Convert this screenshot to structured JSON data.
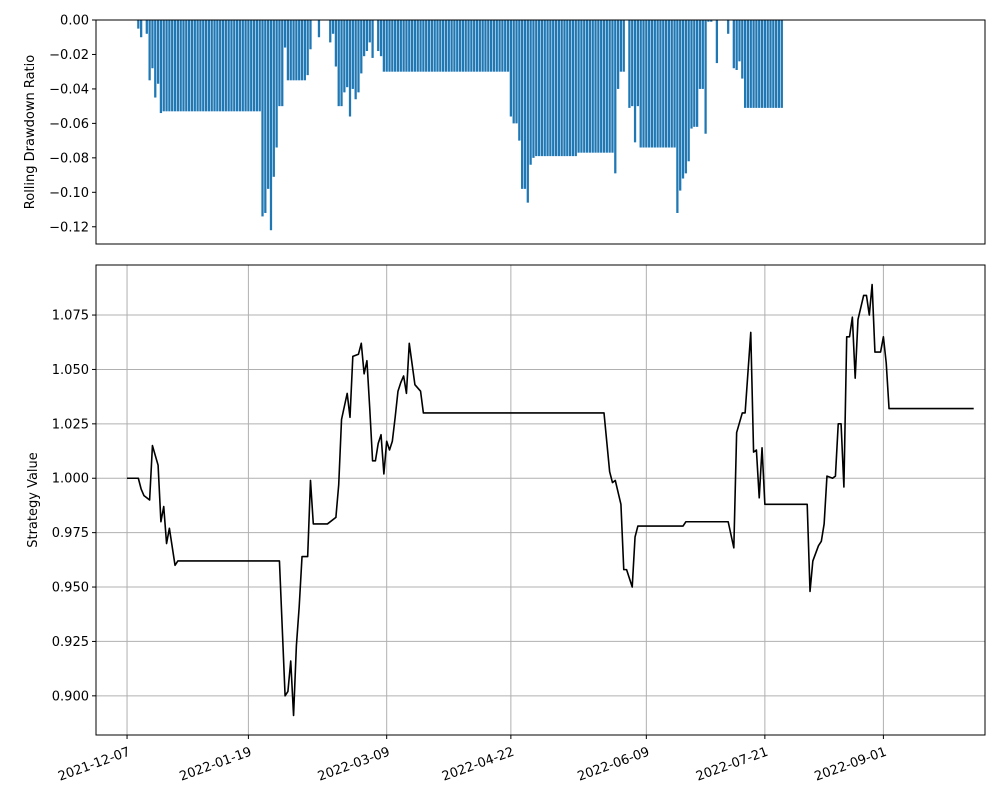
{
  "chart_data": [
    {
      "type": "bar",
      "ylabel": "Rolling Drawdown Ratio",
      "ylim": [
        -0.13,
        0.0
      ],
      "yticks": [
        0.0,
        -0.02,
        -0.04,
        -0.06,
        -0.08,
        -0.1,
        -0.12
      ],
      "ytick_labels": [
        "0.00",
        "−0.02",
        "−0.04",
        "−0.06",
        "−0.08",
        "−0.10",
        "−0.12"
      ],
      "x_start": "2021-12-07",
      "xlim": [
        "2021-11-26",
        "2022-10-07"
      ],
      "grid": false,
      "color": "#1f77b4",
      "values": [
        0,
        0,
        0,
        0,
        -0.005,
        -0.01,
        0,
        -0.008,
        -0.035,
        -0.028,
        -0.045,
        -0.037,
        -0.054,
        -0.053,
        -0.053,
        -0.053,
        -0.053,
        -0.053,
        -0.053,
        -0.053,
        -0.053,
        -0.053,
        -0.053,
        -0.053,
        -0.053,
        -0.053,
        -0.053,
        -0.053,
        -0.053,
        -0.053,
        -0.053,
        -0.053,
        -0.053,
        -0.053,
        -0.053,
        -0.053,
        -0.053,
        -0.053,
        -0.053,
        -0.053,
        -0.053,
        -0.053,
        -0.053,
        -0.053,
        -0.053,
        -0.053,
        -0.053,
        -0.053,
        -0.114,
        -0.112,
        -0.098,
        -0.122,
        -0.091,
        -0.074,
        -0.05,
        -0.05,
        -0.016,
        -0.035,
        -0.035,
        -0.035,
        -0.035,
        -0.035,
        -0.035,
        -0.035,
        -0.032,
        -0.017,
        0,
        0,
        -0.01,
        0,
        0,
        0,
        -0.013,
        -0.008,
        -0.027,
        -0.05,
        -0.05,
        -0.042,
        -0.039,
        -0.056,
        -0.04,
        -0.046,
        -0.042,
        -0.031,
        -0.021,
        -0.018,
        -0.013,
        -0.022,
        0,
        -0.018,
        -0.021,
        -0.03,
        -0.03,
        -0.03,
        -0.03,
        -0.03,
        -0.03,
        -0.03,
        -0.03,
        -0.03,
        -0.03,
        -0.03,
        -0.03,
        -0.03,
        -0.03,
        -0.03,
        -0.03,
        -0.03,
        -0.03,
        -0.03,
        -0.03,
        -0.03,
        -0.03,
        -0.03,
        -0.03,
        -0.03,
        -0.03,
        -0.03,
        -0.03,
        -0.03,
        -0.03,
        -0.03,
        -0.03,
        -0.03,
        -0.03,
        -0.03,
        -0.03,
        -0.03,
        -0.03,
        -0.03,
        -0.03,
        -0.03,
        -0.03,
        -0.03,
        -0.03,
        -0.03,
        -0.056,
        -0.06,
        -0.06,
        -0.07,
        -0.098,
        -0.098,
        -0.106,
        -0.084,
        -0.08,
        -0.079,
        -0.079,
        -0.079,
        -0.079,
        -0.079,
        -0.079,
        -0.079,
        -0.079,
        -0.079,
        -0.079,
        -0.079,
        -0.079,
        -0.079,
        -0.079,
        -0.079,
        -0.077,
        -0.077,
        -0.077,
        -0.077,
        -0.077,
        -0.077,
        -0.077,
        -0.077,
        -0.077,
        -0.077,
        -0.077,
        -0.077,
        -0.077,
        -0.089,
        -0.04,
        -0.03,
        -0.03,
        0,
        -0.051,
        -0.05,
        -0.071,
        -0.05,
        -0.074,
        -0.074,
        -0.074,
        -0.074,
        -0.074,
        -0.074,
        -0.074,
        -0.074,
        -0.074,
        -0.074,
        -0.074,
        -0.074,
        -0.074,
        -0.112,
        -0.099,
        -0.092,
        -0.089,
        -0.082,
        -0.063,
        -0.062,
        -0.062,
        -0.04,
        -0.04,
        -0.066,
        -0.001,
        -0.001,
        0,
        -0.025,
        0,
        0,
        0,
        -0.008,
        0,
        -0.028,
        -0.029,
        -0.024,
        -0.034,
        -0.051,
        -0.051,
        -0.051,
        -0.051,
        -0.051,
        -0.051,
        -0.051,
        -0.051,
        -0.051,
        -0.051,
        -0.051,
        -0.051,
        -0.051,
        -0.051,
        0
      ]
    },
    {
      "type": "line",
      "ylabel": "Strategy Value",
      "ylim": [
        0.882,
        1.098
      ],
      "yticks": [
        0.9,
        0.925,
        0.95,
        0.975,
        1.0,
        1.025,
        1.05,
        1.075
      ],
      "ytick_labels": [
        "0.900",
        "0.925",
        "0.950",
        "0.975",
        "1.000",
        "1.025",
        "1.050",
        "1.075"
      ],
      "xlim": [
        "2021-11-26",
        "2022-10-07"
      ],
      "xticks": [
        "2021-12-07",
        "2022-01-19",
        "2022-03-09",
        "2022-04-22",
        "2022-06-09",
        "2022-07-21",
        "2022-09-01"
      ],
      "grid": true,
      "color": "#000000",
      "x": [
        "2021-12-07",
        "2021-12-11",
        "2021-12-12",
        "2021-12-13",
        "2021-12-15",
        "2021-12-16",
        "2021-12-18",
        "2021-12-19",
        "2021-12-20",
        "2021-12-21",
        "2021-12-22",
        "2021-12-24",
        "2021-12-25",
        "2022-01-10",
        "2022-01-30",
        "2022-02-01",
        "2022-02-02",
        "2022-02-03",
        "2022-02-04",
        "2022-02-05",
        "2022-02-06",
        "2022-02-07",
        "2022-02-09",
        "2022-02-10",
        "2022-02-11",
        "2022-02-12",
        "2022-02-13",
        "2022-02-15",
        "2022-02-16",
        "2022-02-19",
        "2022-02-20",
        "2022-02-21",
        "2022-02-23",
        "2022-02-24",
        "2022-02-25",
        "2022-02-27",
        "2022-02-28",
        "2022-03-01",
        "2022-03-02",
        "2022-03-03",
        "2022-03-04",
        "2022-03-05",
        "2022-03-06",
        "2022-03-07",
        "2022-03-08",
        "2022-03-09",
        "2022-03-10",
        "2022-03-11",
        "2022-03-12",
        "2022-03-13",
        "2022-03-14",
        "2022-03-15",
        "2022-03-16",
        "2022-03-17",
        "2022-03-19",
        "2022-03-21",
        "2022-03-22",
        "2022-03-24",
        "2022-03-25",
        "2022-03-26",
        "2022-03-27",
        "2022-03-29",
        "2022-05-25",
        "2022-05-27",
        "2022-05-28",
        "2022-05-29",
        "2022-05-31",
        "2022-06-01",
        "2022-06-02",
        "2022-06-04",
        "2022-06-05",
        "2022-06-06",
        "2022-06-07",
        "2022-06-08",
        "2022-06-09",
        "2022-06-10",
        "2022-06-11",
        "2022-06-22",
        "2022-06-23",
        "2022-07-08",
        "2022-07-10",
        "2022-07-11",
        "2022-07-13",
        "2022-07-14",
        "2022-07-16",
        "2022-07-17",
        "2022-07-18",
        "2022-07-19",
        "2022-07-20",
        "2022-07-21",
        "2022-07-22",
        "2022-08-05",
        "2022-08-06",
        "2022-08-07",
        "2022-08-09",
        "2022-08-10",
        "2022-08-11",
        "2022-08-12",
        "2022-08-14",
        "2022-08-15",
        "2022-08-16",
        "2022-08-17",
        "2022-08-18",
        "2022-08-19",
        "2022-08-20",
        "2022-08-21",
        "2022-08-22",
        "2022-08-23",
        "2022-08-25",
        "2022-08-26",
        "2022-08-27",
        "2022-08-28",
        "2022-08-29",
        "2022-08-31",
        "2022-09-01",
        "2022-09-02",
        "2022-09-03",
        "2022-09-04",
        "2022-09-05",
        "2022-09-06",
        "2022-09-07",
        "2022-10-03"
      ],
      "values": [
        1.0,
        1.0,
        0.995,
        0.992,
        0.99,
        1.015,
        1.006,
        0.98,
        0.987,
        0.97,
        0.977,
        0.96,
        0.962,
        0.962,
        0.962,
        0.9,
        0.902,
        0.916,
        0.891,
        0.923,
        0.941,
        0.964,
        0.964,
        0.999,
        0.979,
        0.979,
        0.979,
        0.979,
        0.979,
        0.982,
        0.997,
        1.027,
        1.039,
        1.028,
        1.056,
        1.057,
        1.062,
        1.048,
        1.054,
        1.032,
        1.008,
        1.008,
        1.016,
        1.02,
        1.002,
        1.017,
        1.013,
        1.017,
        1.028,
        1.04,
        1.044,
        1.047,
        1.039,
        1.062,
        1.043,
        1.04,
        1.03,
        1.03,
        1.03,
        1.03,
        1.03,
        1.03,
        1.03,
        1.003,
        0.998,
        0.999,
        0.988,
        0.958,
        0.958,
        0.95,
        0.973,
        0.978,
        0.978,
        0.978,
        0.978,
        0.978,
        0.978,
        0.978,
        0.98,
        0.98,
        0.968,
        1.021,
        1.03,
        1.03,
        1.067,
        1.012,
        1.013,
        0.991,
        1.014,
        0.988,
        0.988,
        0.988,
        0.948,
        0.962,
        0.969,
        0.971,
        0.979,
        1.001,
        1.0,
        1.001,
        1.025,
        1.025,
        0.996,
        1.065,
        1.065,
        1.074,
        1.046,
        1.073,
        1.084,
        1.084,
        1.075,
        1.089,
        1.058,
        1.058,
        1.065,
        1.053,
        1.032,
        1.032,
        1.032,
        1.032,
        1.032,
        1.032
      ]
    }
  ]
}
